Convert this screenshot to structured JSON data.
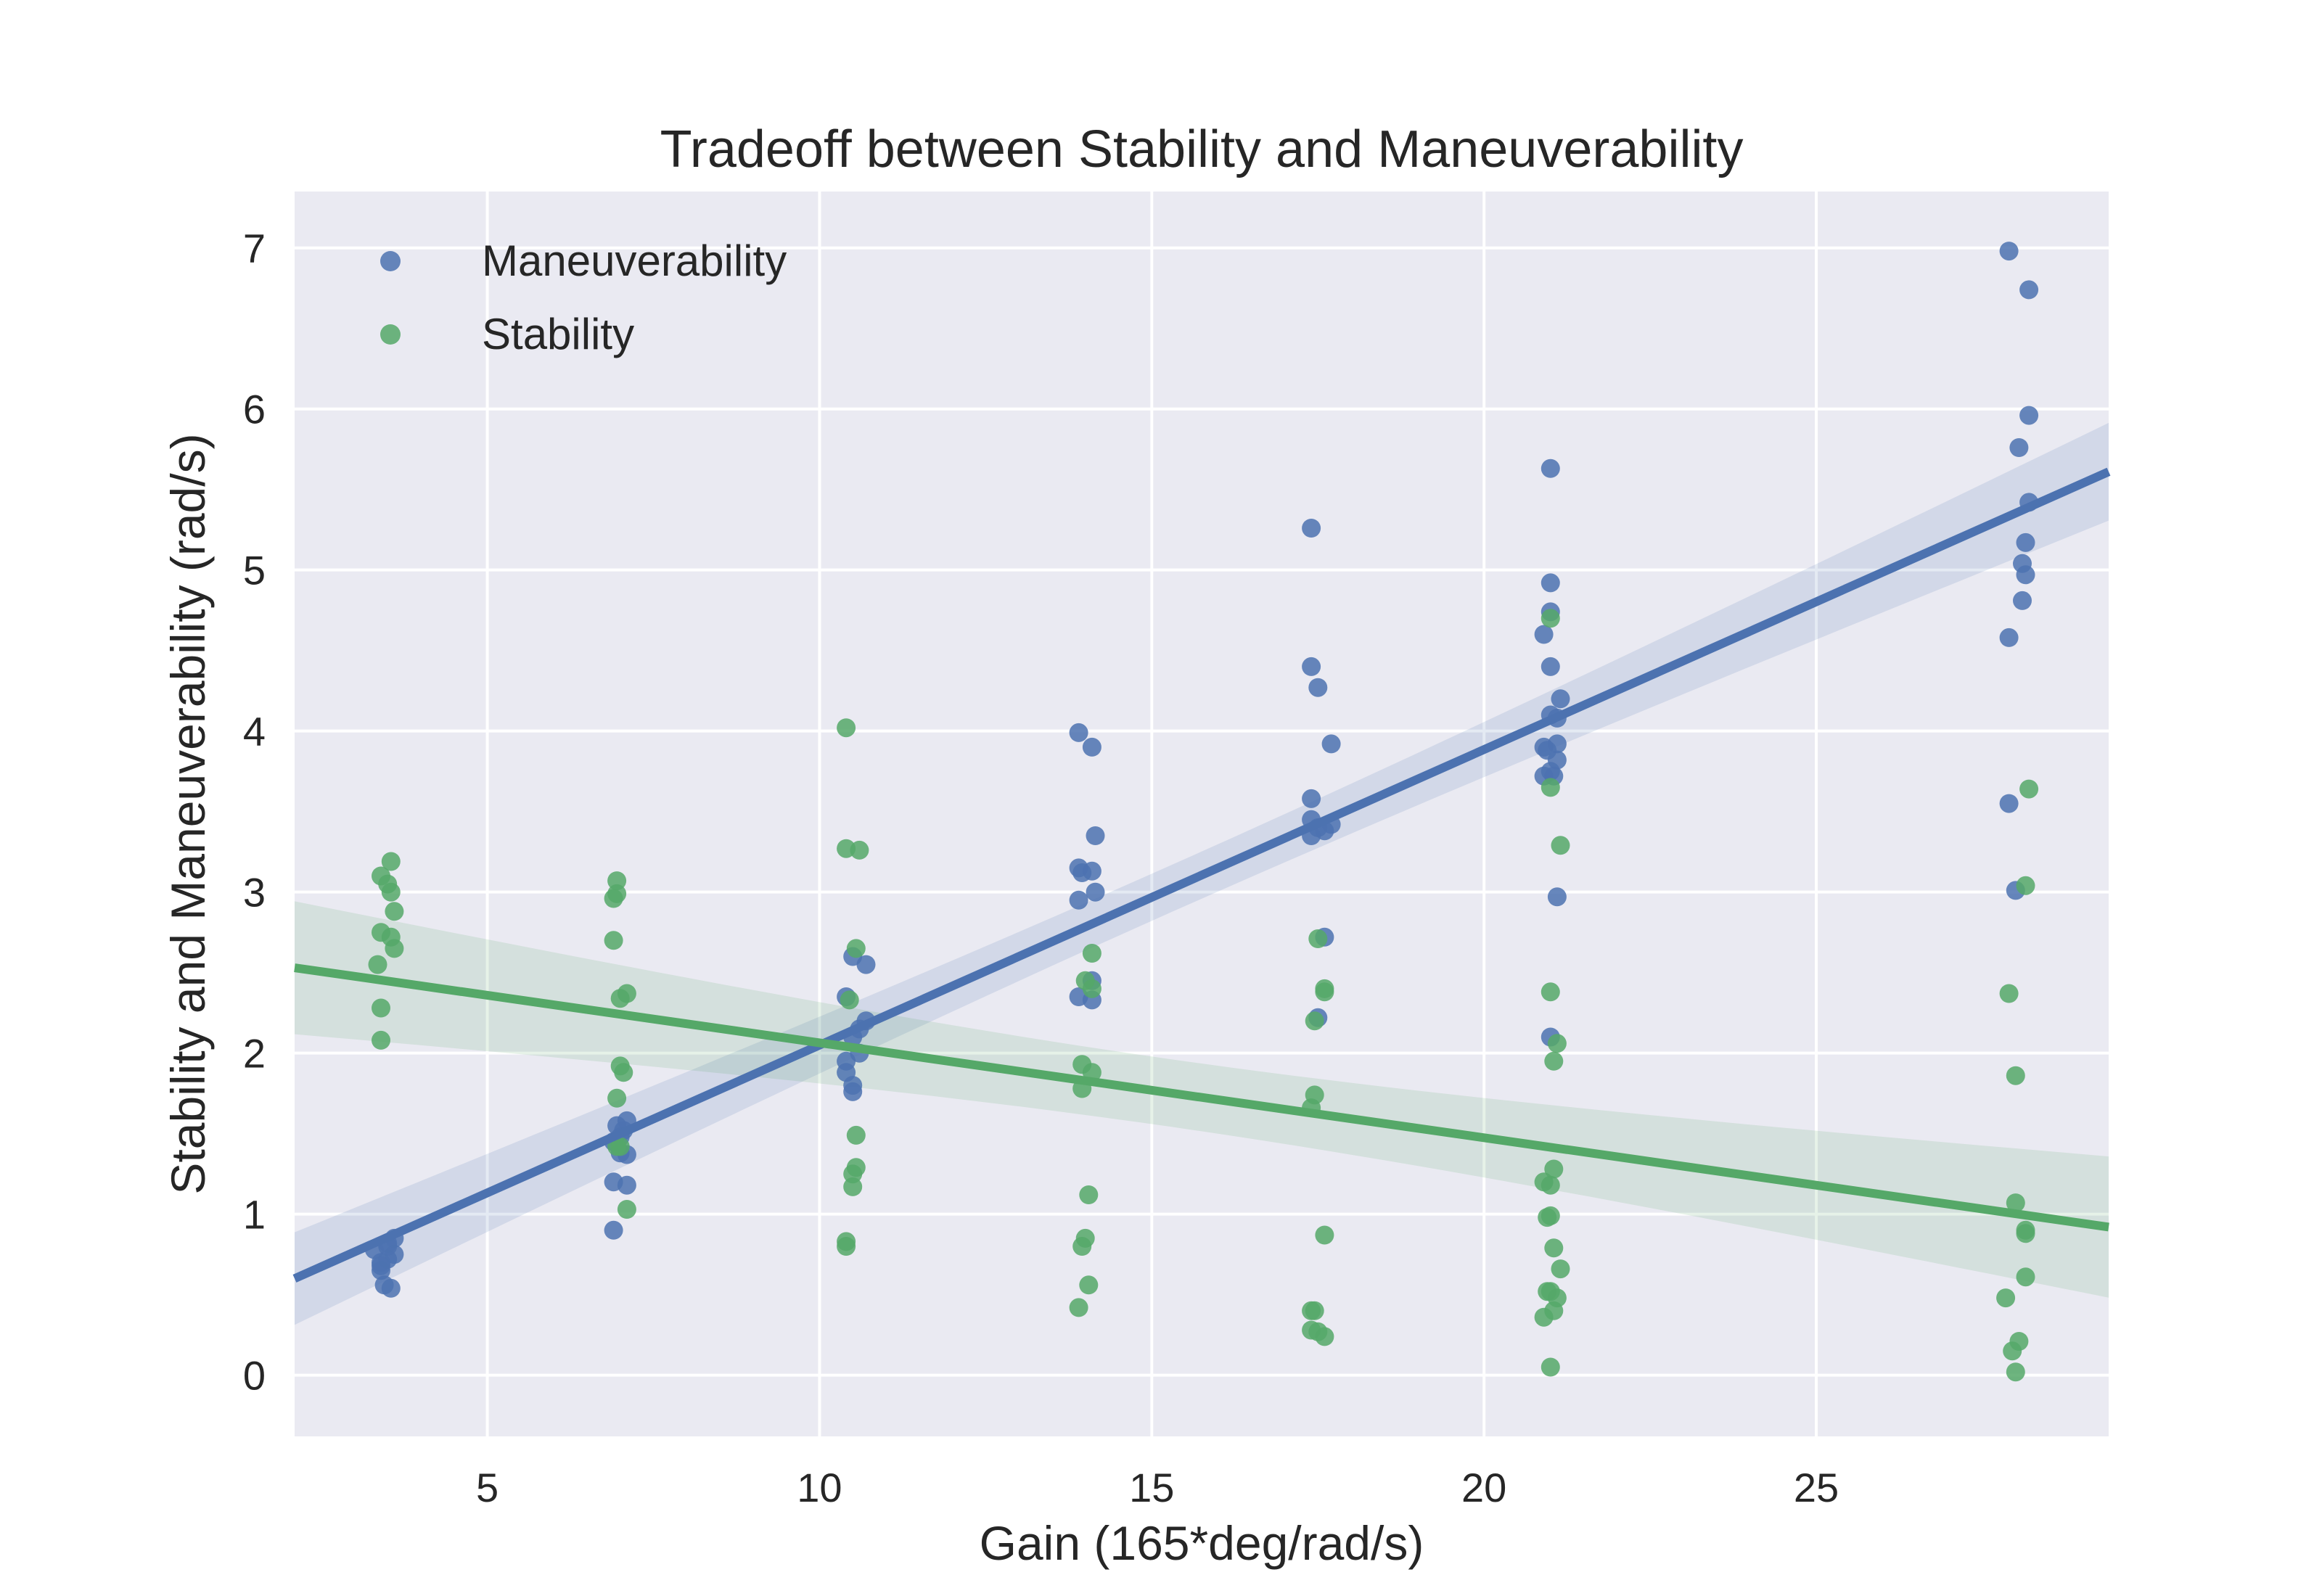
{
  "chart_data": {
    "type": "scatter",
    "title": "Tradeoff between Stability and Maneuverability",
    "xlabel": "Gain (165*deg/rad/s)",
    "ylabel": "Stability and Maneuverability (rad/s)",
    "xlim": [
      2.1,
      29.4
    ],
    "ylim": [
      -0.38,
      7.35
    ],
    "xticks": [
      5,
      10,
      15,
      20,
      25
    ],
    "yticks": [
      0,
      1,
      2,
      3,
      4,
      5,
      6,
      7
    ],
    "grid": true,
    "legend_position": "top-left",
    "series": [
      {
        "name": "Maneuverability",
        "color": "#4C72B0",
        "points": [
          [
            3.4,
            0.7
          ],
          [
            3.5,
            0.8
          ],
          [
            3.6,
            0.85
          ],
          [
            3.4,
            0.65
          ],
          [
            3.5,
            0.72
          ],
          [
            3.3,
            0.78
          ],
          [
            3.6,
            0.75
          ],
          [
            3.45,
            0.56
          ],
          [
            3.55,
            0.54
          ],
          [
            3.4,
            0.68
          ],
          [
            3.5,
            0.82
          ],
          [
            6.9,
            0.9
          ],
          [
            6.9,
            1.2
          ],
          [
            7.1,
            1.18
          ],
          [
            7.0,
            1.38
          ],
          [
            7.1,
            1.37
          ],
          [
            6.9,
            1.45
          ],
          [
            7.0,
            1.48
          ],
          [
            7.05,
            1.52
          ],
          [
            6.95,
            1.55
          ],
          [
            7.1,
            1.58
          ],
          [
            10.5,
            1.8
          ],
          [
            10.5,
            1.76
          ],
          [
            10.4,
            1.88
          ],
          [
            10.6,
            2.0
          ],
          [
            10.5,
            2.1
          ],
          [
            10.6,
            2.15
          ],
          [
            10.7,
            2.2
          ],
          [
            10.4,
            2.35
          ],
          [
            10.7,
            2.55
          ],
          [
            10.5,
            2.6
          ],
          [
            10.4,
            1.95
          ],
          [
            13.9,
            2.35
          ],
          [
            14.1,
            2.33
          ],
          [
            14.1,
            2.45
          ],
          [
            13.9,
            2.95
          ],
          [
            14.15,
            3.0
          ],
          [
            13.95,
            3.12
          ],
          [
            14.1,
            3.13
          ],
          [
            13.9,
            3.15
          ],
          [
            14.15,
            3.35
          ],
          [
            14.1,
            3.9
          ],
          [
            13.9,
            3.99
          ],
          [
            17.5,
            2.22
          ],
          [
            17.6,
            2.72
          ],
          [
            17.4,
            3.35
          ],
          [
            17.5,
            3.4
          ],
          [
            17.6,
            3.38
          ],
          [
            17.4,
            3.45
          ],
          [
            17.7,
            3.42
          ],
          [
            17.4,
            3.58
          ],
          [
            17.7,
            3.92
          ],
          [
            17.5,
            4.27
          ],
          [
            17.4,
            4.4
          ],
          [
            17.4,
            5.26
          ],
          [
            21.0,
            2.1
          ],
          [
            21.1,
            2.97
          ],
          [
            20.9,
            3.72
          ],
          [
            21.0,
            3.75
          ],
          [
            21.05,
            3.72
          ],
          [
            21.1,
            3.82
          ],
          [
            20.95,
            3.88
          ],
          [
            20.9,
            3.9
          ],
          [
            21.1,
            3.92
          ],
          [
            21.0,
            4.1
          ],
          [
            21.1,
            4.08
          ],
          [
            21.15,
            4.2
          ],
          [
            21.0,
            4.4
          ],
          [
            20.9,
            4.6
          ],
          [
            21.0,
            4.74
          ],
          [
            21.0,
            4.92
          ],
          [
            21.0,
            5.63
          ],
          [
            28.0,
            3.01
          ],
          [
            27.9,
            3.55
          ],
          [
            27.9,
            4.58
          ],
          [
            28.1,
            4.81
          ],
          [
            28.15,
            4.97
          ],
          [
            28.1,
            5.04
          ],
          [
            28.15,
            5.17
          ],
          [
            28.2,
            5.42
          ],
          [
            28.05,
            5.76
          ],
          [
            28.2,
            5.96
          ],
          [
            28.2,
            6.74
          ],
          [
            27.9,
            6.98
          ]
        ],
        "regression": {
          "x": [
            2.1,
            29.4
          ],
          "y": [
            0.6,
            5.61
          ]
        }
      },
      {
        "name": "Stability",
        "color": "#55A868",
        "points": [
          [
            3.4,
            2.08
          ],
          [
            3.4,
            2.28
          ],
          [
            3.35,
            2.55
          ],
          [
            3.6,
            2.65
          ],
          [
            3.55,
            2.72
          ],
          [
            3.4,
            2.75
          ],
          [
            3.6,
            2.88
          ],
          [
            3.55,
            3.0
          ],
          [
            3.5,
            3.05
          ],
          [
            3.4,
            3.1
          ],
          [
            3.55,
            3.19
          ],
          [
            7.1,
            1.03
          ],
          [
            7.0,
            1.42
          ],
          [
            6.95,
            1.42
          ],
          [
            6.95,
            1.72
          ],
          [
            7.05,
            1.88
          ],
          [
            7.0,
            1.92
          ],
          [
            7.0,
            2.34
          ],
          [
            7.1,
            2.37
          ],
          [
            6.9,
            2.7
          ],
          [
            6.9,
            2.96
          ],
          [
            6.95,
            2.99
          ],
          [
            6.95,
            3.07
          ],
          [
            10.4,
            0.8
          ],
          [
            10.4,
            0.83
          ],
          [
            10.5,
            1.17
          ],
          [
            10.5,
            1.25
          ],
          [
            10.55,
            1.29
          ],
          [
            10.55,
            1.49
          ],
          [
            10.45,
            2.33
          ],
          [
            10.55,
            2.65
          ],
          [
            10.4,
            3.27
          ],
          [
            10.6,
            3.26
          ],
          [
            10.4,
            4.02
          ],
          [
            13.9,
            0.42
          ],
          [
            14.05,
            0.56
          ],
          [
            13.95,
            0.8
          ],
          [
            14.0,
            0.85
          ],
          [
            14.05,
            1.12
          ],
          [
            13.95,
            1.78
          ],
          [
            14.1,
            1.88
          ],
          [
            13.95,
            1.93
          ],
          [
            14.1,
            2.4
          ],
          [
            14.0,
            2.45
          ],
          [
            14.1,
            2.62
          ],
          [
            17.6,
            0.24
          ],
          [
            17.5,
            0.27
          ],
          [
            17.4,
            0.28
          ],
          [
            17.4,
            0.4
          ],
          [
            17.45,
            0.4
          ],
          [
            17.6,
            0.87
          ],
          [
            17.4,
            1.66
          ],
          [
            17.45,
            1.74
          ],
          [
            17.45,
            2.2
          ],
          [
            17.6,
            2.38
          ],
          [
            17.6,
            2.4
          ],
          [
            17.5,
            2.71
          ],
          [
            21.0,
            0.05
          ],
          [
            20.9,
            0.36
          ],
          [
            21.05,
            0.4
          ],
          [
            21.1,
            0.48
          ],
          [
            20.95,
            0.52
          ],
          [
            21.0,
            0.52
          ],
          [
            21.15,
            0.66
          ],
          [
            21.05,
            0.79
          ],
          [
            20.95,
            0.98
          ],
          [
            21.0,
            0.99
          ],
          [
            20.9,
            1.2
          ],
          [
            21.0,
            1.18
          ],
          [
            21.05,
            1.28
          ],
          [
            21.05,
            1.95
          ],
          [
            21.1,
            2.06
          ],
          [
            21.0,
            2.38
          ],
          [
            21.15,
            3.29
          ],
          [
            21.0,
            3.65
          ],
          [
            21.0,
            4.7
          ],
          [
            28.0,
            0.02
          ],
          [
            27.95,
            0.15
          ],
          [
            28.05,
            0.21
          ],
          [
            27.85,
            0.48
          ],
          [
            28.15,
            0.61
          ],
          [
            28.15,
            0.88
          ],
          [
            28.15,
            0.9
          ],
          [
            28.0,
            1.07
          ],
          [
            28.0,
            1.86
          ],
          [
            27.9,
            2.37
          ],
          [
            28.15,
            3.04
          ],
          [
            28.2,
            3.64
          ]
        ],
        "regression": {
          "x": [
            2.1,
            29.4
          ],
          "y": [
            2.53,
            0.92
          ]
        }
      }
    ]
  }
}
